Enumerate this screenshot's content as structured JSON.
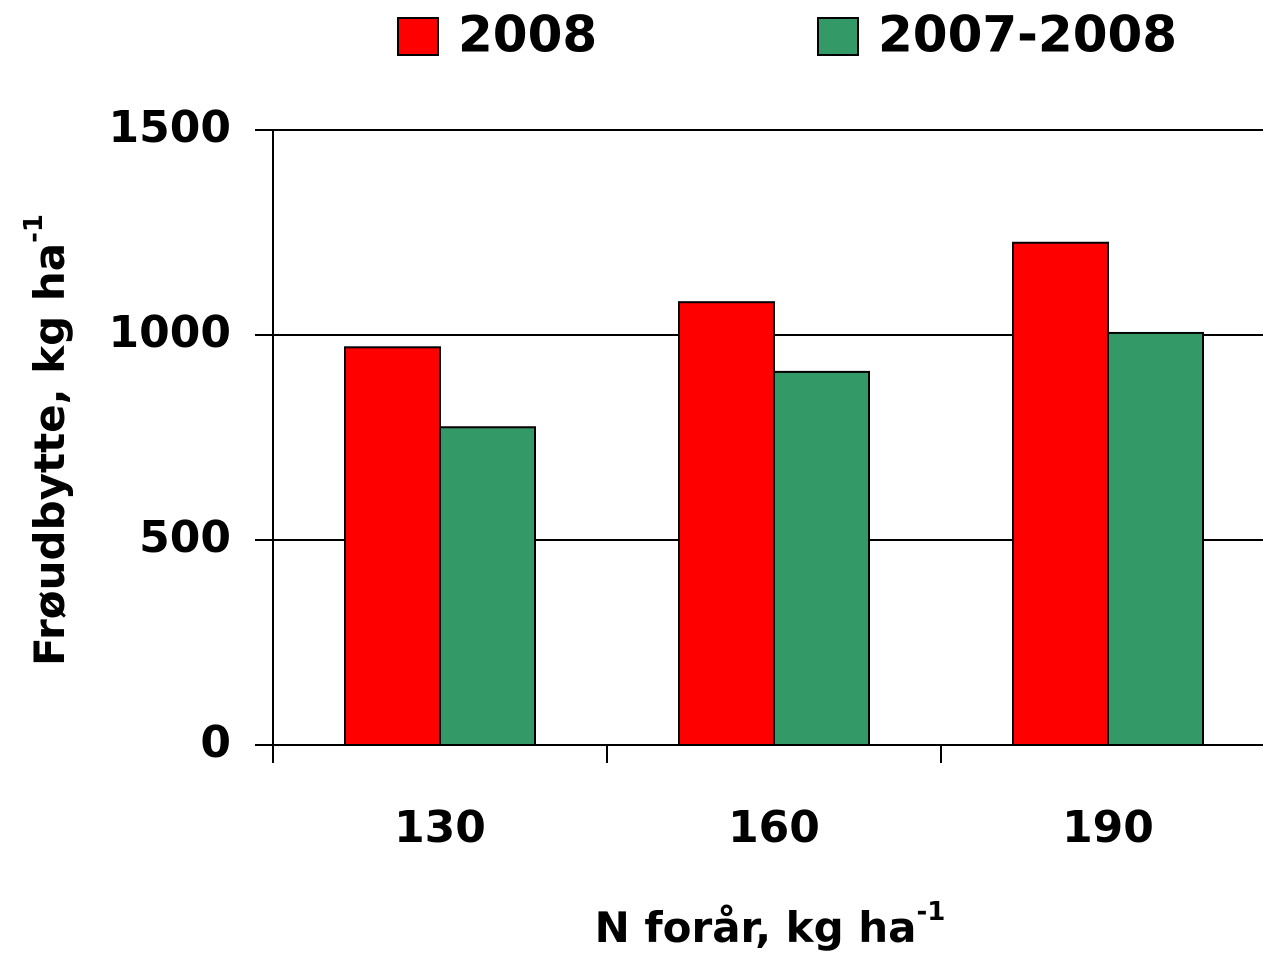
{
  "chart_data": {
    "type": "bar",
    "xlabel": {
      "text": "N forår, kg ha",
      "superscript": "-1"
    },
    "ylabel": {
      "text": "Frøudbytte, kg ha",
      "superscript": "-1"
    },
    "categories": [
      "130",
      "160",
      "190"
    ],
    "series": [
      {
        "name": "2008",
        "color": "#ff0000",
        "values": [
          970,
          1080,
          1225
        ]
      },
      {
        "name": "2007-2008",
        "color": "#339966",
        "values": [
          775,
          910,
          1005
        ]
      }
    ],
    "ylim": [
      0,
      1500
    ],
    "yticks": [
      0,
      500,
      1000,
      1500
    ],
    "grid": true,
    "legend": "top"
  }
}
